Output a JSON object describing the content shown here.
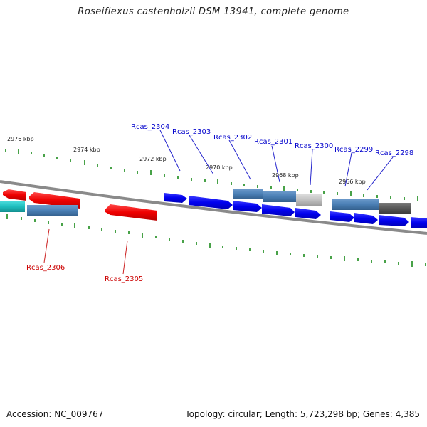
{
  "title": "Roseiflexus castenholzii DSM 13941, complete genome",
  "footer": {
    "accession": "Accession: NC_009767",
    "summary": "Topology: circular; Length: 5,723,298 bp; Genes: 4,385"
  },
  "scale_labels": [
    "2976 kbp",
    "2974 kbp",
    "2972 kbp",
    "2970 kbp",
    "2968 kbp",
    "2966 kbp"
  ],
  "gene_labels_top": [
    "Rcas_2304",
    "Rcas_2303",
    "Rcas_2302",
    "Rcas_2301",
    "Rcas_2300",
    "Rcas_2299",
    "Rcas_2298"
  ],
  "gene_labels_bottom": [
    "Rcas_2306",
    "Rcas_2305"
  ],
  "colors": {
    "forward_gene": "#0000ee",
    "reverse_gene": "#ee0000",
    "steel": "#4a7fb5",
    "cyan": "#1fbfbf",
    "gray": "#c0c0c0",
    "dark": "#555555",
    "tick": "#1a8a1a",
    "backbone": "#8a8a8a",
    "label_blue": "#0000cc",
    "label_red": "#cc0000"
  }
}
